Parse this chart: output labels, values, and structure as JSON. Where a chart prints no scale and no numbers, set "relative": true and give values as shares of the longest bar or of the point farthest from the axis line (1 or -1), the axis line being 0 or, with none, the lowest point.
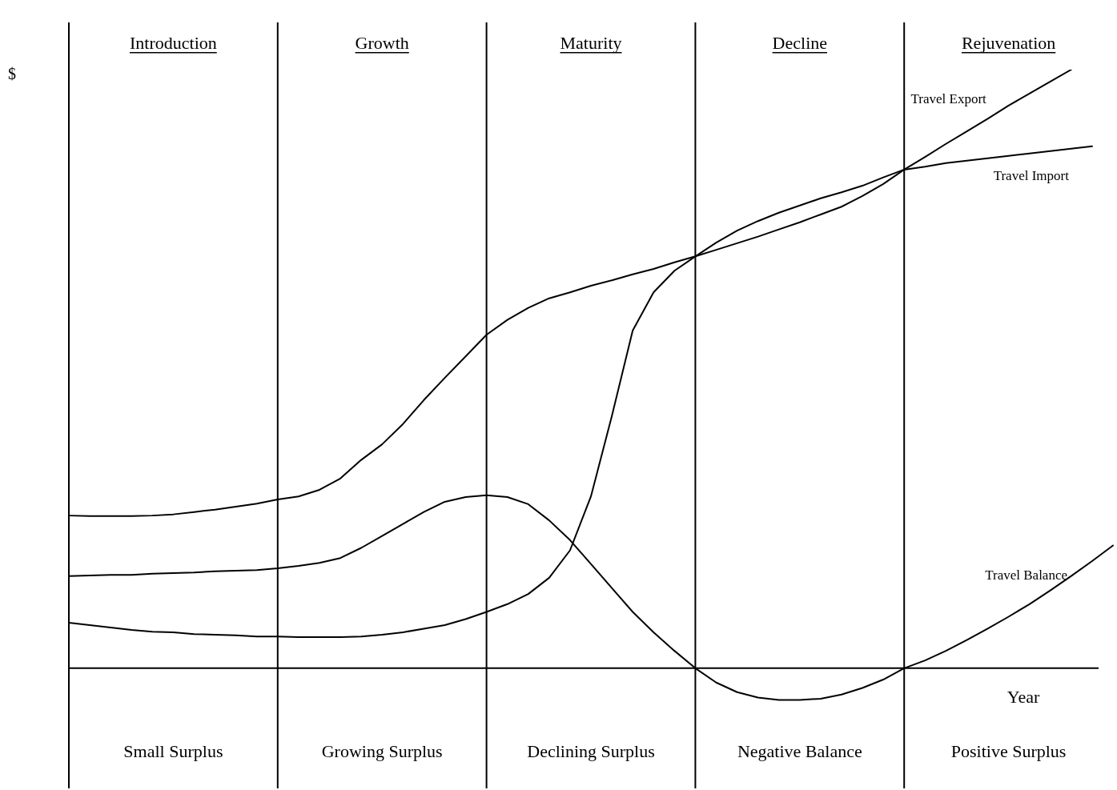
{
  "chart_data": {
    "type": "line",
    "relative": true,
    "xlabel": "Year",
    "ylabel": "$",
    "legend": false,
    "grid": "x",
    "marker": "none",
    "line_style": "solid",
    "categories": [
      null,
      null,
      null,
      null,
      null,
      null,
      null,
      null,
      null,
      null,
      null,
      null,
      null,
      null,
      null,
      null,
      null,
      null,
      null,
      null,
      null,
      null,
      null,
      null,
      null,
      null,
      null,
      null,
      null,
      null,
      null,
      null,
      null,
      null,
      null,
      null,
      null,
      null,
      null,
      null,
      null,
      null,
      null,
      null,
      null,
      null,
      null,
      null,
      null,
      null,
      null
    ],
    "series": [
      {
        "name": "Travel Export",
        "color": "#000000",
        "values": [
          0.255,
          0.254,
          0.254,
          0.254,
          0.255,
          0.257,
          0.261,
          0.265,
          0.27,
          0.275,
          0.282,
          0.287,
          0.298,
          0.317,
          0.348,
          0.374,
          0.408,
          0.448,
          0.485,
          0.521,
          0.557,
          0.582,
          0.602,
          0.618,
          0.628,
          0.639,
          0.648,
          0.658,
          0.667,
          0.678,
          0.688,
          0.699,
          0.71,
          0.721,
          0.733,
          0.745,
          0.758,
          0.771,
          0.789,
          0.809,
          0.833,
          0.854,
          0.876,
          0.897,
          0.918,
          0.94,
          0.96,
          0.98,
          1,
          null,
          null
        ]
      },
      {
        "name": "Travel Import",
        "color": "#000000",
        "values": [
          0.076,
          0.072,
          0.068,
          0.064,
          0.061,
          0.06,
          0.057,
          0.056,
          0.055,
          0.053,
          0.053,
          0.052,
          0.052,
          0.052,
          0.053,
          0.056,
          0.06,
          0.066,
          0.072,
          0.082,
          0.094,
          0.107,
          0.124,
          0.151,
          0.197,
          0.287,
          0.421,
          0.564,
          0.628,
          0.664,
          0.688,
          0.711,
          0.731,
          0.747,
          0.761,
          0.773,
          0.785,
          0.795,
          0.806,
          0.82,
          0.833,
          0.838,
          0.844,
          0.848,
          0.852,
          0.856,
          0.86,
          0.864,
          0.868,
          0.872,
          null
        ]
      },
      {
        "name": "Travel Balance",
        "color": "#000000",
        "values": [
          0.154,
          0.155,
          0.156,
          0.156,
          0.158,
          0.159,
          0.16,
          0.162,
          0.163,
          0.164,
          0.167,
          0.171,
          0.176,
          0.184,
          0.201,
          0.221,
          0.241,
          0.261,
          0.278,
          0.286,
          0.289,
          0.286,
          0.274,
          0.247,
          0.214,
          0.174,
          0.134,
          0.094,
          0.06,
          0.029,
          0,
          -0.024,
          -0.04,
          -0.049,
          -0.053,
          -0.053,
          -0.051,
          -0.044,
          -0.033,
          -0.019,
          0,
          0.013,
          0.029,
          0.047,
          0.066,
          0.086,
          0.107,
          0.13,
          0.154,
          0.179,
          0.205
        ]
      }
    ],
    "annotations": [
      "Introduction",
      "Growth",
      "Maturity",
      "Decline",
      "Rejuvenation",
      "Small Surplus",
      "Growing Surplus",
      "Declining Surplus",
      "Negative Balance",
      "Positive Surplus"
    ]
  }
}
